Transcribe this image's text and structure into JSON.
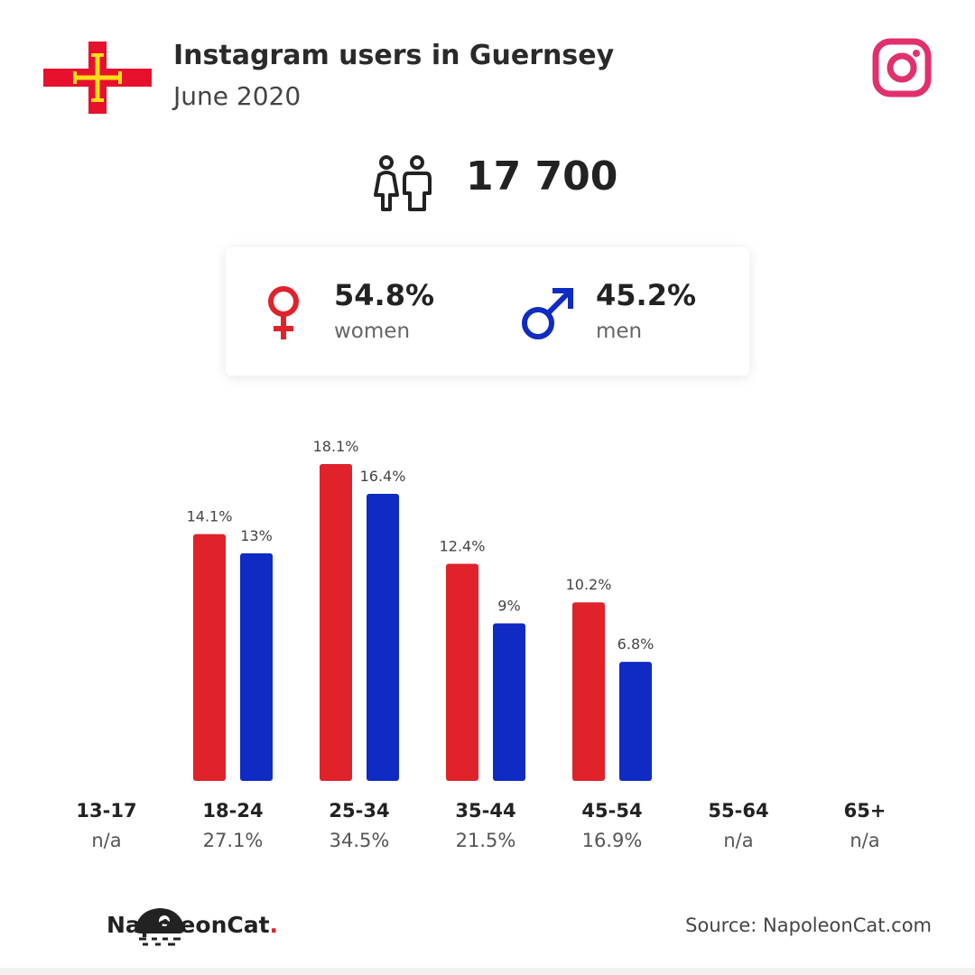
{
  "header": {
    "title": "Instagram users in Guernsey",
    "subtitle": "June 2020"
  },
  "total_users": "17 700",
  "gender": {
    "women_pct": "54.8%",
    "women_label": "women",
    "men_pct": "45.2%",
    "men_label": "men"
  },
  "colors": {
    "women": "#e0222a",
    "men": "#0f2bc4",
    "instagram": "#e1306c",
    "flag_red": "#e8112d",
    "flag_gold": "#f9dd16"
  },
  "icons": {
    "flag": "guernsey-flag-icon",
    "instagram": "instagram-icon",
    "people": "people-icon",
    "female": "female-symbol-icon",
    "male": "male-symbol-icon",
    "logo": "napoleoncat-logo-icon"
  },
  "chart_data": {
    "type": "bar",
    "categories": [
      "13-17",
      "18-24",
      "25-34",
      "35-44",
      "45-54",
      "55-64",
      "65+"
    ],
    "totals": [
      "n/a",
      "27.1%",
      "34.5%",
      "21.5%",
      "16.9%",
      "n/a",
      "n/a"
    ],
    "series": [
      {
        "key": "women",
        "values": [
          null,
          14.1,
          18.1,
          12.4,
          10.2,
          null,
          null
        ],
        "labels": [
          "",
          "14.1%",
          "18.1%",
          "12.4%",
          "10.2%",
          "",
          ""
        ]
      },
      {
        "key": "men",
        "values": [
          null,
          13,
          16.4,
          9,
          6.8,
          null,
          null
        ],
        "labels": [
          "",
          "13%",
          "16.4%",
          "9%",
          "6.8%",
          "",
          ""
        ]
      }
    ],
    "ylim": [
      0,
      18.1
    ],
    "grid": false
  },
  "footer": {
    "brand_name": "NapoleonCat",
    "brand_dot": ".",
    "source": "Source: NapoleonCat.com"
  }
}
